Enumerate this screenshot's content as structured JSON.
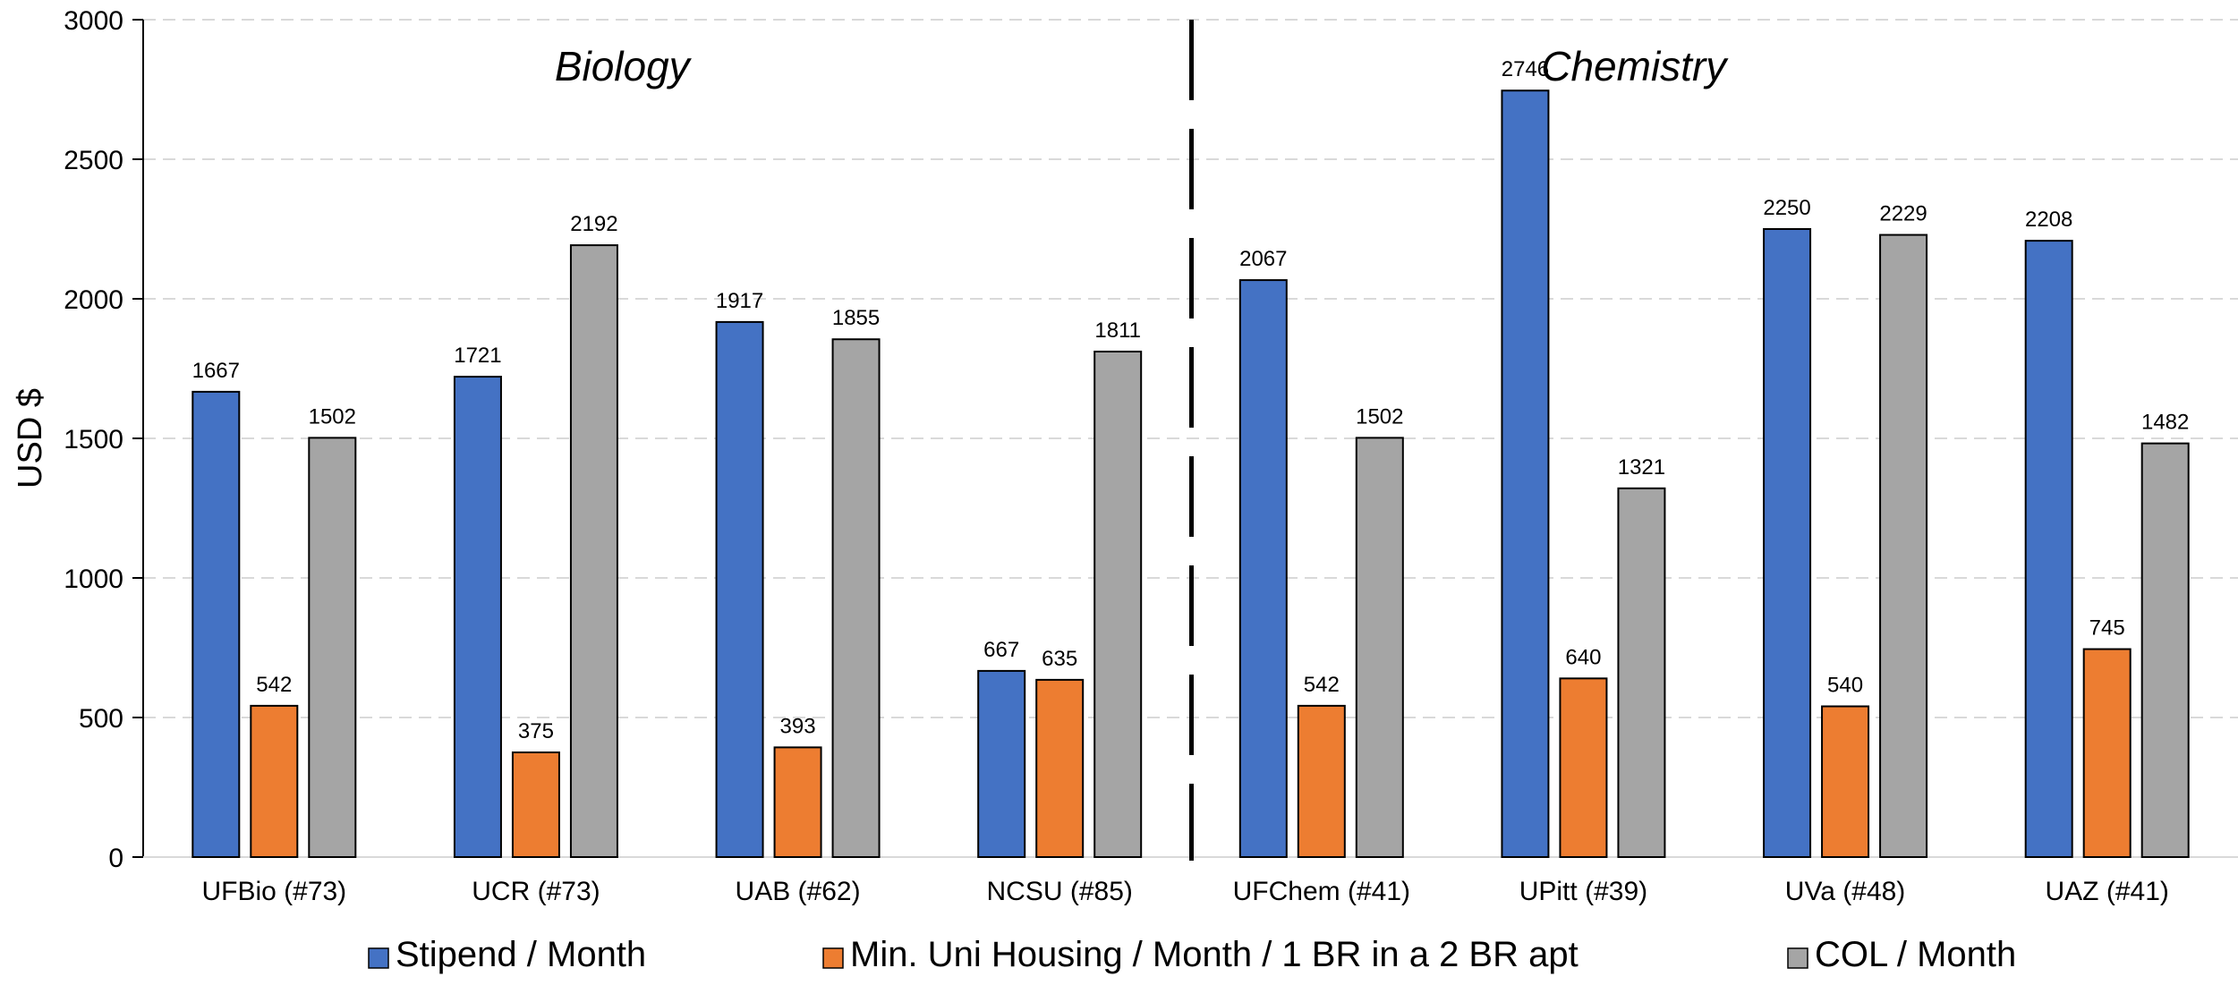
{
  "chart_data": {
    "type": "bar",
    "ylabel": "USD $",
    "ylim": [
      0,
      3000
    ],
    "yticks": [
      0,
      500,
      1000,
      1500,
      2000,
      2500,
      3000
    ],
    "grid": true,
    "legend_position": "bottom",
    "categories": [
      "UFBio (#73)",
      "UCR (#73)",
      "UAB (#62)",
      "NCSU (#85)",
      "UFChem (#41)",
      "UPitt (#39)",
      "UVa (#48)",
      "UAZ (#41)"
    ],
    "series": [
      {
        "name": "Stipend / Month",
        "color": "#4472C4",
        "values": [
          1667,
          1721,
          1917,
          667,
          2067,
          2746,
          2250,
          2208
        ]
      },
      {
        "name": "Min. Uni Housing / Month / 1 BR in a 2 BR apt",
        "color": "#ED7D31",
        "values": [
          542,
          375,
          393,
          635,
          542,
          640,
          540,
          745
        ]
      },
      {
        "name": "COL / Month",
        "color": "#A5A5A5",
        "values": [
          1502,
          2192,
          1855,
          1811,
          1502,
          1321,
          2229,
          1482
        ]
      }
    ],
    "annotations": [
      {
        "text": "Biology",
        "group": "left"
      },
      {
        "text": "Chemistry",
        "group": "right"
      }
    ]
  }
}
